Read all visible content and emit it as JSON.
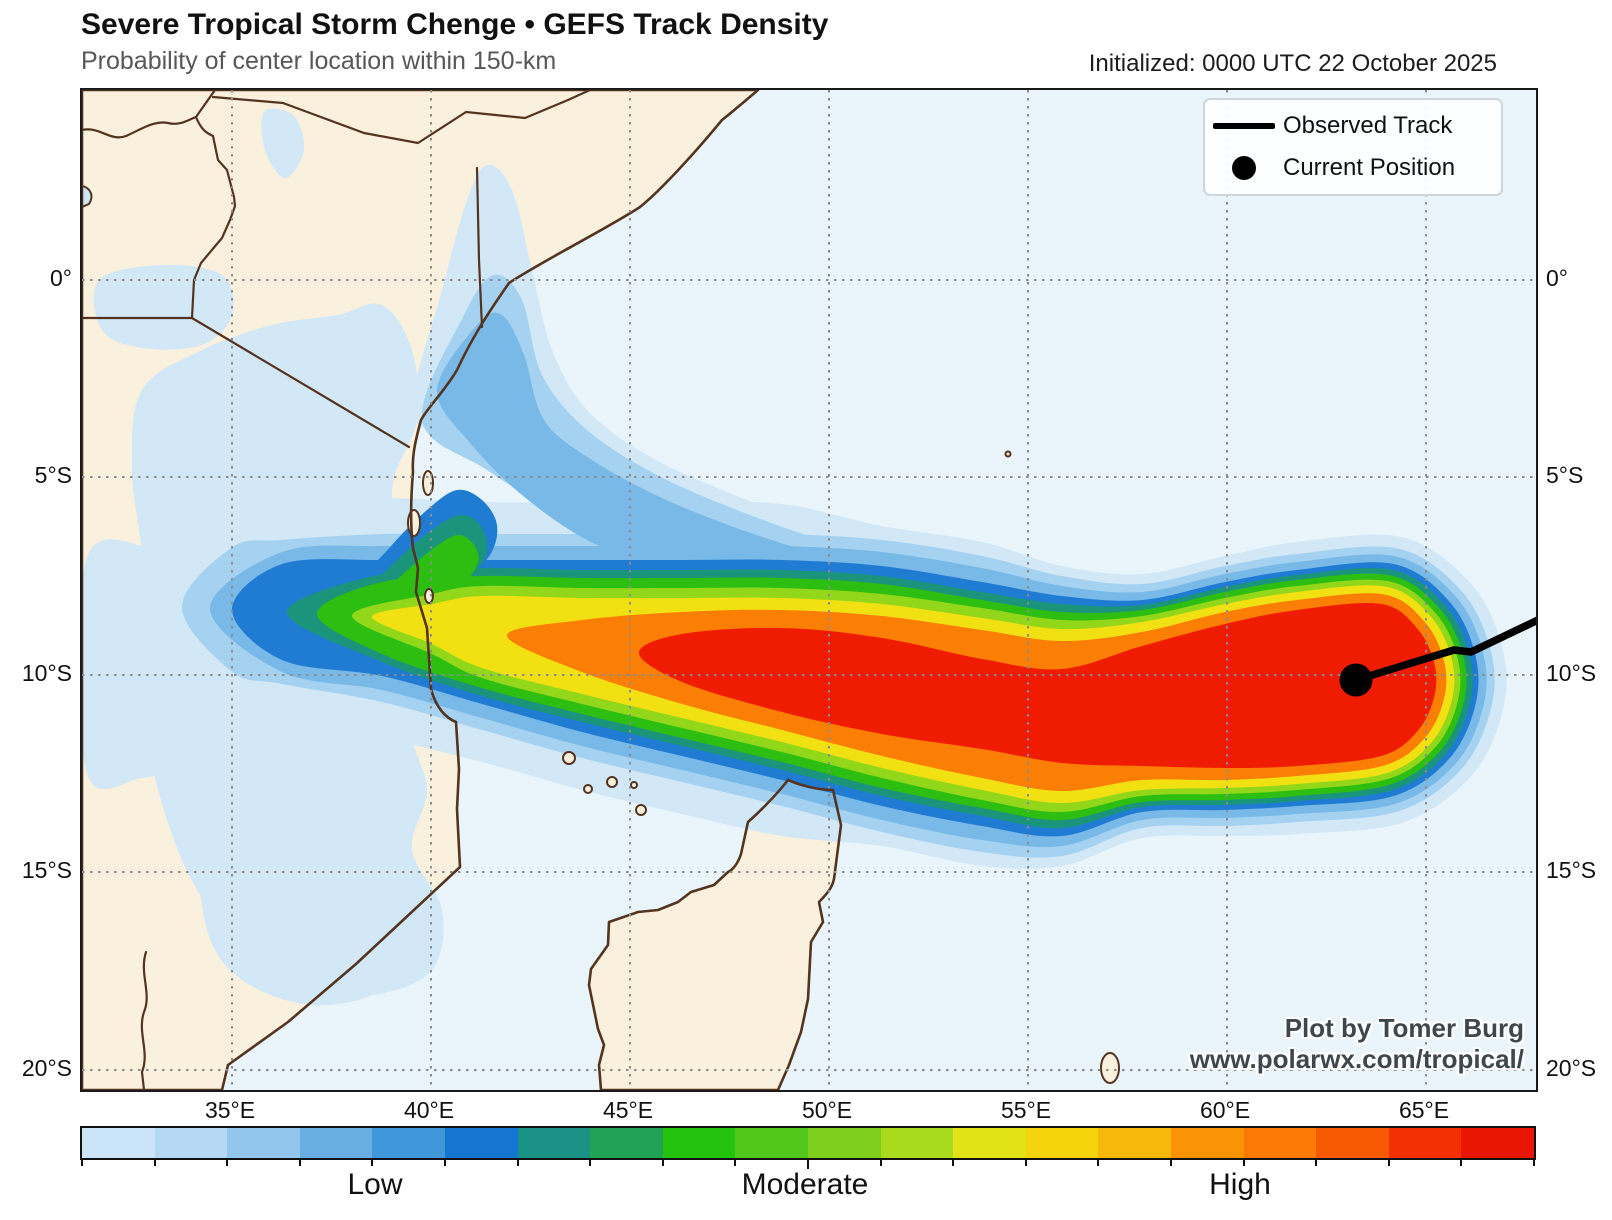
{
  "header": {
    "title": "Severe Tropical Storm Chenge • GEFS Track Density",
    "subtitle": "Probability of center location within 150-km",
    "initialized": "Initialized: 0000 UTC 22 October 2025"
  },
  "legend": {
    "observed_track": "Observed Track",
    "current_position": "Current Position"
  },
  "axes": {
    "lat_ticks": [
      "0°",
      "5°S",
      "10°S",
      "15°S",
      "20°S"
    ],
    "lon_ticks": [
      "35°E",
      "40°E",
      "45°E",
      "50°E",
      "55°E",
      "60°E",
      "65°E"
    ]
  },
  "colorbar": {
    "labels": [
      "Low",
      "Moderate",
      "High"
    ],
    "colors": [
      "#cce4f7",
      "#b5d9f2",
      "#92c6ec",
      "#68aee2",
      "#3f97da",
      "#1576d2",
      "#199184",
      "#21a355",
      "#23c20d",
      "#52c81c",
      "#7fd01e",
      "#aada1d",
      "#e2e317",
      "#f4d30d",
      "#f7b70b",
      "#fa9406",
      "#fb7a06",
      "#f85a04",
      "#f23002",
      "#e81602"
    ]
  },
  "attribution": {
    "line1": "Plot by Tomer Burg",
    "line2": "www.polarwx.com/tropical/"
  },
  "map": {
    "ocean_color": "#e9f5fb",
    "land_color": "#faf0de",
    "coast_color": "#54341f",
    "grid_color": "#8c8c8c",
    "track_color": "#000000",
    "density_levels": [
      "#d2e8f7",
      "#a5d2f0",
      "#79b9e8",
      "#1f7cd2",
      "#1a957b",
      "#2cbe10",
      "#93d71b",
      "#f2e112",
      "#fb7e05",
      "#ef1c02"
    ]
  }
}
